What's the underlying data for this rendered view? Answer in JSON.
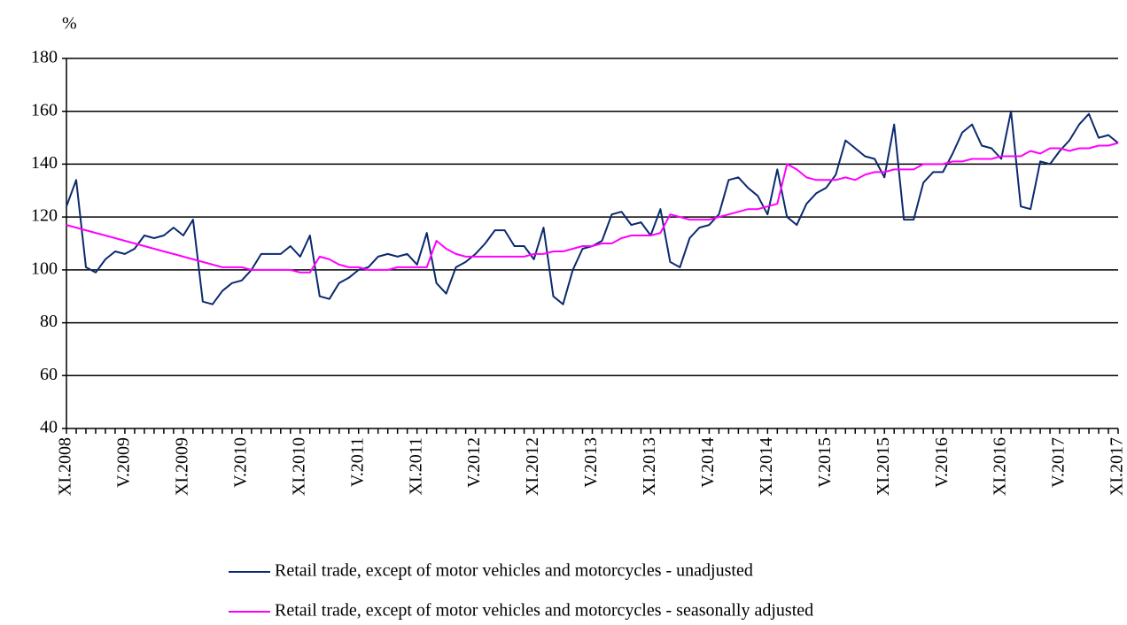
{
  "chart_data": {
    "type": "line",
    "y_label": "%",
    "ylim": [
      40,
      180
    ],
    "yticks": [
      40,
      60,
      80,
      100,
      120,
      140,
      160,
      180
    ],
    "grid": true,
    "legend": "bottom",
    "categories": [
      "XI.2008",
      null,
      null,
      null,
      null,
      null,
      "V.2009",
      null,
      null,
      null,
      null,
      null,
      "XI.2009",
      null,
      null,
      null,
      null,
      null,
      "V.2010",
      null,
      null,
      null,
      null,
      null,
      "XI.2010",
      null,
      null,
      null,
      null,
      null,
      "V.2011",
      null,
      null,
      null,
      null,
      null,
      "XI.2011",
      null,
      null,
      null,
      null,
      null,
      "V.2012",
      null,
      null,
      null,
      null,
      null,
      "XI.2012",
      null,
      null,
      null,
      null,
      null,
      "V.2013",
      null,
      null,
      null,
      null,
      null,
      "XI.2013",
      null,
      null,
      null,
      null,
      null,
      "V.2014",
      null,
      null,
      null,
      null,
      null,
      "XI.2014",
      null,
      null,
      null,
      null,
      null,
      "V.2015",
      null,
      null,
      null,
      null,
      null,
      "XI.2015",
      null,
      null,
      null,
      null,
      null,
      "V.2016",
      null,
      null,
      null,
      null,
      null,
      "XI.2016",
      null,
      null,
      null,
      null,
      null,
      "V.2017",
      null,
      null,
      null,
      null,
      null,
      "XI.2017"
    ],
    "series": [
      {
        "name": "Retail trade, except of motor vehicles and motorcycles - unadjusted",
        "color": "#0b2a6e",
        "values": [
          124,
          134,
          101,
          99,
          104,
          107,
          106,
          108,
          113,
          112,
          113,
          116,
          113,
          119,
          88,
          87,
          92,
          95,
          96,
          100,
          106,
          106,
          106,
          109,
          105,
          113,
          90,
          89,
          95,
          97,
          100,
          101,
          105,
          106,
          105,
          106,
          102,
          114,
          95,
          91,
          101,
          103,
          106,
          110,
          115,
          115,
          109,
          109,
          104,
          116,
          90,
          87,
          100,
          108,
          109,
          111,
          121,
          122,
          117,
          118,
          113,
          123,
          103,
          101,
          112,
          116,
          117,
          121,
          134,
          135,
          131,
          128,
          121,
          138,
          120,
          117,
          125,
          129,
          131,
          136,
          149,
          146,
          143,
          142,
          135,
          155,
          119,
          119,
          133,
          137,
          137,
          144,
          152,
          155,
          147,
          146,
          142,
          160,
          124,
          123,
          141,
          140,
          145,
          149,
          155,
          159,
          150,
          151,
          148
        ]
      },
      {
        "name": "Retail trade, except of motor vehicles and motorcycles - seasonally adjusted",
        "color": "#ff00ff",
        "values": [
          117,
          116,
          115,
          114,
          113,
          112,
          111,
          110,
          109,
          108,
          107,
          106,
          105,
          104,
          103,
          102,
          101,
          101,
          101,
          100,
          100,
          100,
          100,
          100,
          99,
          99,
          105,
          104,
          102,
          101,
          101,
          100,
          100,
          100,
          101,
          101,
          101,
          101,
          111,
          108,
          106,
          105,
          105,
          105,
          105,
          105,
          105,
          105,
          106,
          106,
          107,
          107,
          108,
          109,
          109,
          110,
          110,
          112,
          113,
          113,
          113,
          114,
          121,
          120,
          119,
          119,
          119,
          120,
          121,
          122,
          123,
          123,
          124,
          125,
          140,
          138,
          135,
          134,
          134,
          134,
          135,
          134,
          136,
          137,
          137,
          138,
          138,
          138,
          140,
          140,
          140,
          141,
          141,
          142,
          142,
          142,
          143,
          143,
          143,
          145,
          144,
          146,
          146,
          145,
          146,
          146,
          147,
          147,
          148
        ]
      }
    ]
  }
}
